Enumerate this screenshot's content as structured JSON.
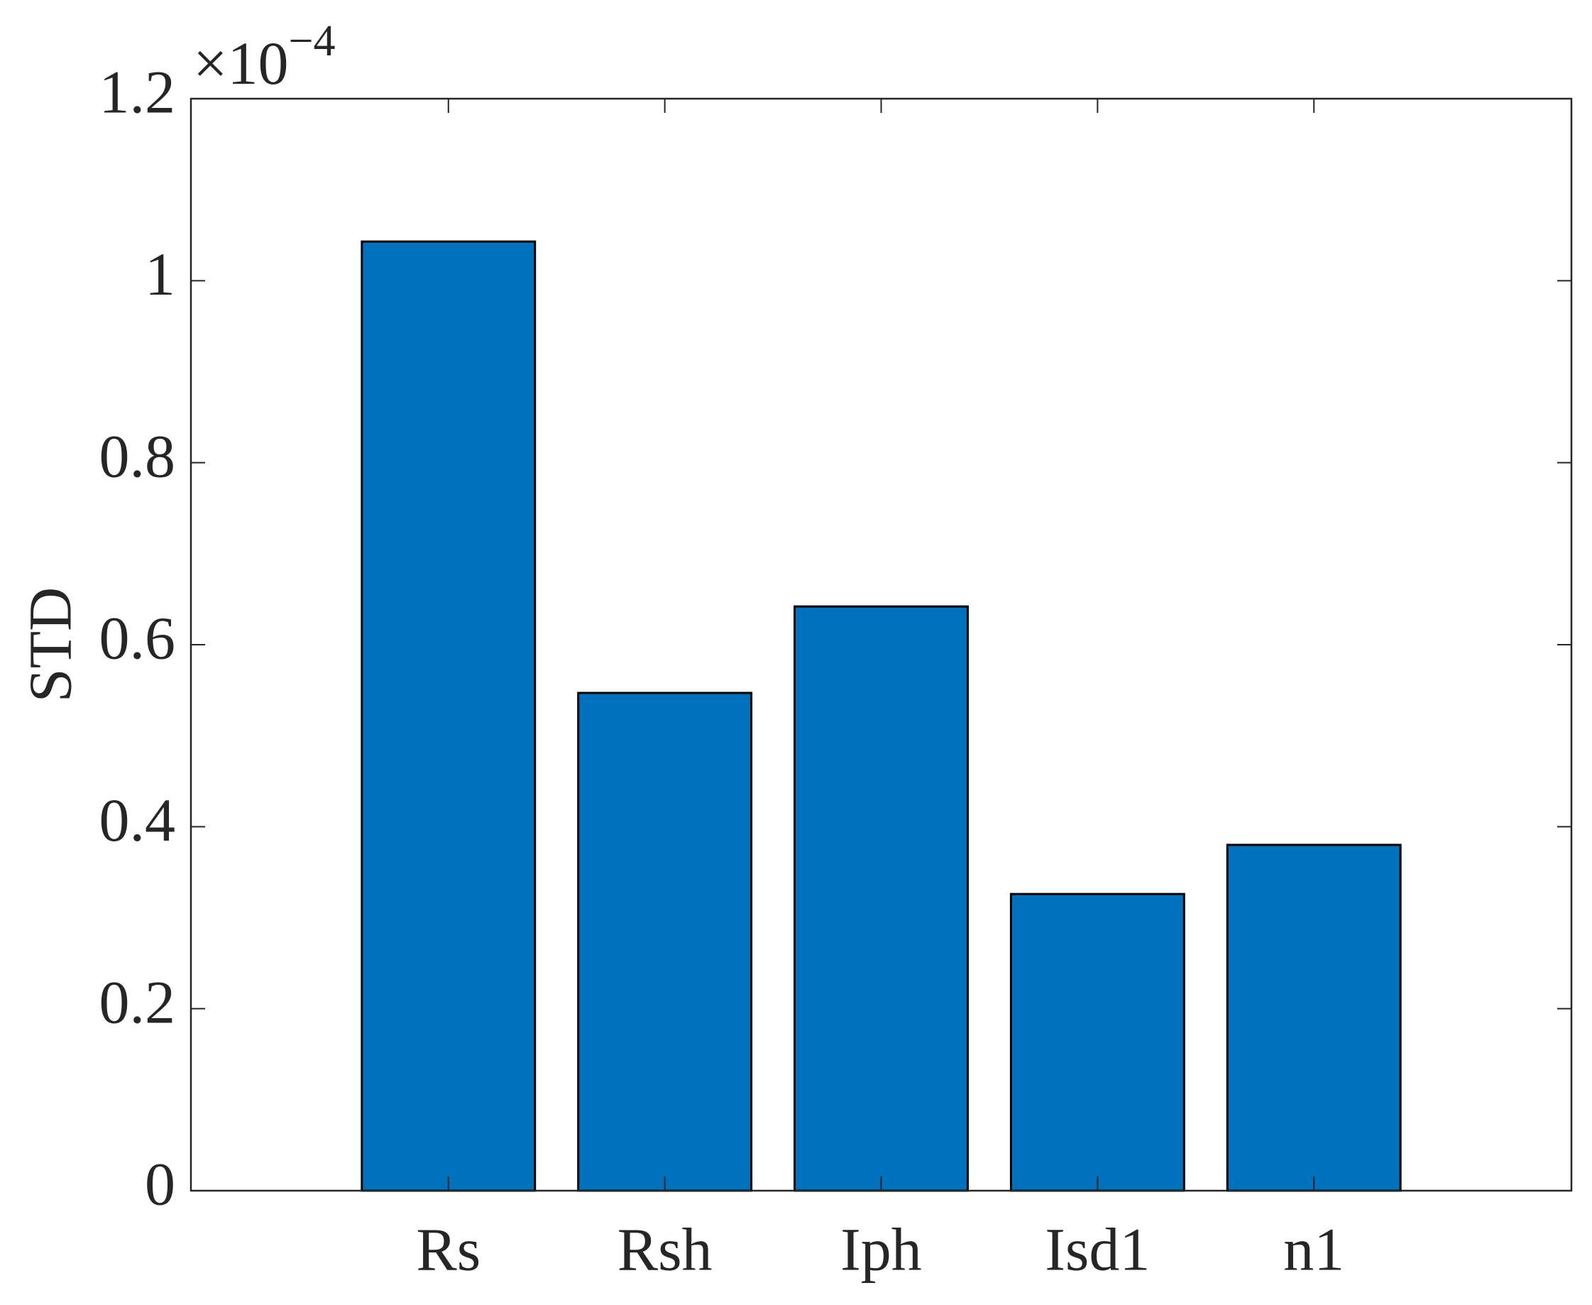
{
  "chart_data": {
    "type": "bar",
    "ylabel": "STD",
    "y_multiplier": {
      "base": "×10",
      "exponent": "−4"
    },
    "categories": [
      "Rs",
      "Rsh",
      "Iph",
      "Isd1",
      "n1"
    ],
    "values": [
      1.043,
      0.547,
      0.642,
      0.326,
      0.38
    ],
    "color": "#0072bd",
    "ylim": [
      0,
      1.2
    ],
    "yticks": [
      0,
      0.2,
      0.4,
      0.6,
      0.8,
      1,
      1.2
    ],
    "grid": false
  }
}
